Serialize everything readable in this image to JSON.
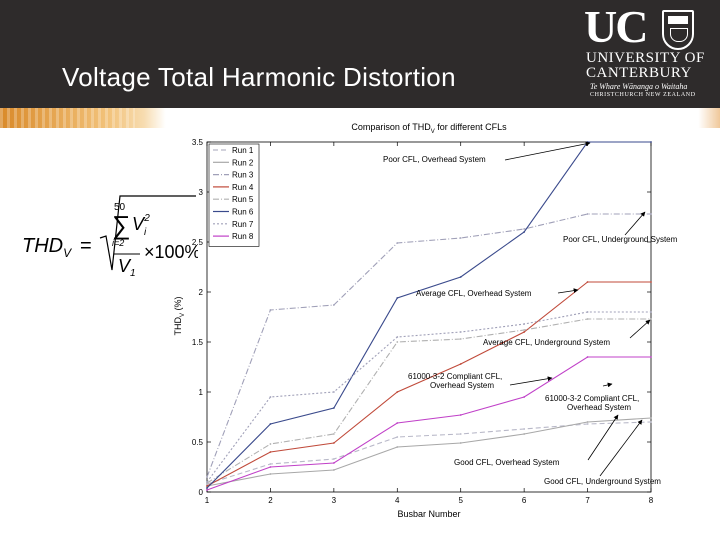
{
  "slide": {
    "title": "Voltage Total Harmonic Distortion"
  },
  "logo": {
    "mark": "UC",
    "line1": "UNIVERSITY OF",
    "line2": "CANTERBURY",
    "line3": "Te Whare Wānanga o Waitaha",
    "line4": "CHRISTCHURCH NEW ZEALAND",
    "crest_icon": "university-crest-icon"
  },
  "formula": {
    "lhs": "THD",
    "lhs_sub": "V",
    "eq": "=",
    "sum_upper": "50",
    "sum_lower": "i=2",
    "term": "V",
    "term_sub": "i",
    "term_sup": "2",
    "denom": "V",
    "denom_sub": "1",
    "factor": "×100%"
  },
  "chart_data": {
    "type": "line",
    "title": "Comparison of THDV for different CFLs",
    "title_main": "Comparison of THD",
    "title_sub": "V",
    "title_rest": " for different CFLs",
    "xlabel": "Busbar Number",
    "ylabel": "THDV (%)",
    "ylabel_main": "THD",
    "ylabel_sub": "V",
    "ylabel_rest": " (%)",
    "xlim": [
      1,
      8
    ],
    "ylim": [
      0,
      3.5
    ],
    "x": [
      1,
      2,
      3,
      4,
      5,
      6,
      7,
      8
    ],
    "xticks": [
      "1",
      "2",
      "3",
      "4",
      "5",
      "6",
      "7",
      "8"
    ],
    "yticks": [
      "0",
      "0.5",
      "1",
      "1.5",
      "2",
      "2.5",
      "3",
      "3.5"
    ],
    "grid": false,
    "legend_position": "top-left",
    "series": [
      {
        "name": "Run 1",
        "color": "#b8b8c8",
        "dash": "5,3",
        "values": [
          0.08,
          0.28,
          0.33,
          0.55,
          0.58,
          0.63,
          0.68,
          0.7
        ]
      },
      {
        "name": "Run 2",
        "color": "#a8a8a8",
        "dash": "",
        "values": [
          0.06,
          0.18,
          0.22,
          0.45,
          0.49,
          0.58,
          0.7,
          0.74
        ]
      },
      {
        "name": "Run 3",
        "color": "#a0a0b8",
        "dash": "6,2,1,2",
        "values": [
          0.15,
          1.82,
          1.87,
          2.49,
          2.54,
          2.63,
          2.78,
          2.78
        ]
      },
      {
        "name": "Run 4",
        "color": "#c04a3a",
        "dash": "",
        "values": [
          0.06,
          0.4,
          0.49,
          1.0,
          1.28,
          1.6,
          2.1,
          2.1
        ]
      },
      {
        "name": "Run 5",
        "color": "#b0b0b0",
        "dash": "6,2,1,2",
        "values": [
          0.09,
          0.48,
          0.58,
          1.5,
          1.53,
          1.62,
          1.73,
          1.73
        ]
      },
      {
        "name": "Run 6",
        "color": "#3a4a8c",
        "dash": "",
        "values": [
          0.04,
          0.68,
          0.84,
          1.94,
          2.15,
          2.6,
          3.5,
          3.5
        ]
      },
      {
        "name": "Run 7",
        "color": "#a0a0b8",
        "dash": "2,2",
        "values": [
          0.1,
          0.95,
          1.0,
          1.55,
          1.6,
          1.68,
          1.8,
          1.8
        ]
      },
      {
        "name": "Run 8",
        "color": "#c040c8",
        "dash": "",
        "values": [
          0.02,
          0.25,
          0.29,
          0.69,
          0.77,
          0.95,
          1.35,
          1.35
        ]
      }
    ],
    "annotations": [
      {
        "id": "poor-overhead",
        "lines": [
          "Poor CFL, Overhead System"
        ]
      },
      {
        "id": "poor-underground",
        "lines": [
          "Poor CFL, Underground System"
        ]
      },
      {
        "id": "avg-overhead",
        "lines": [
          "Average CFL, Overhead System"
        ]
      },
      {
        "id": "avg-underground",
        "lines": [
          "Average CFL, Underground System"
        ]
      },
      {
        "id": "compliant-overhead",
        "lines": [
          "61000-3-2 Compliant CFL,",
          "Overhead System"
        ]
      },
      {
        "id": "compliant-underground",
        "lines": [
          "61000-3-2 Compliant CFL,",
          "Overhead System"
        ]
      },
      {
        "id": "good-overhead",
        "lines": [
          "Good CFL, Overhead System"
        ]
      },
      {
        "id": "good-underground",
        "lines": [
          "Good CFL, Underground System"
        ]
      }
    ]
  }
}
